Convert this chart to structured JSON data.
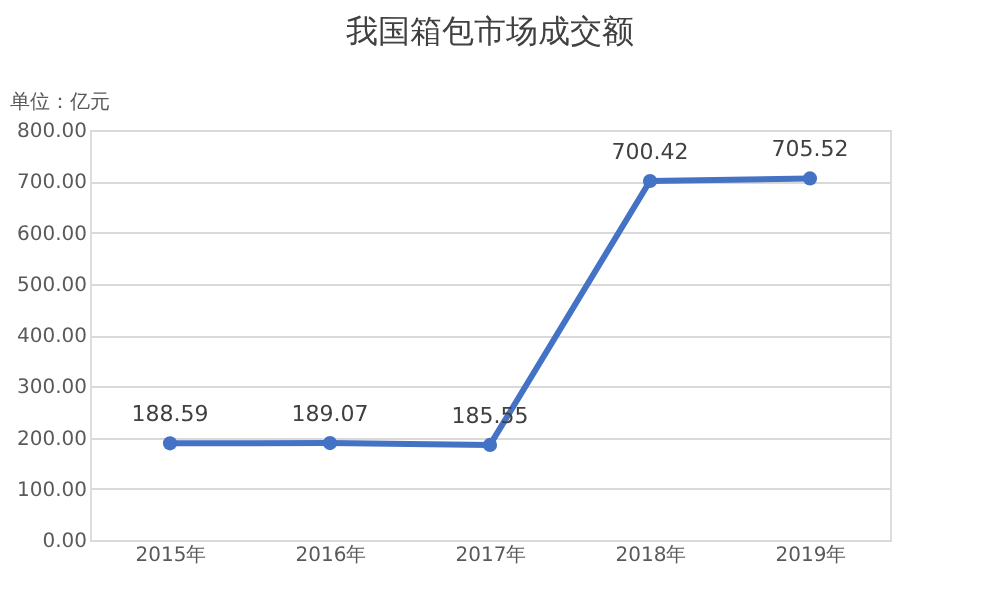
{
  "chart_data": {
    "type": "line",
    "title": "我国箱包市场成交额",
    "annotations": [
      "单位：亿元"
    ],
    "categories": [
      "2015年",
      "2016年",
      "2017年",
      "2018年",
      "2019年"
    ],
    "series": [
      {
        "color": "#4472c4",
        "values": [
          188.59,
          189.07,
          185.55,
          700.42,
          705.52
        ]
      }
    ],
    "ylim": [
      0,
      800
    ],
    "yticks": [
      {
        "value": 0,
        "label": "0.00"
      },
      {
        "value": 100,
        "label": "100.00"
      },
      {
        "value": 200,
        "label": "200.00"
      },
      {
        "value": 300,
        "label": "300.00"
      },
      {
        "value": 400,
        "label": "400.00"
      },
      {
        "value": 500,
        "label": "500.00"
      },
      {
        "value": 600,
        "label": "600.00"
      },
      {
        "value": 700,
        "label": "700.00"
      },
      {
        "value": 800,
        "label": "800.00"
      }
    ],
    "grid": "y",
    "marker": "circle",
    "line_style": "solid",
    "data_labels": true
  }
}
